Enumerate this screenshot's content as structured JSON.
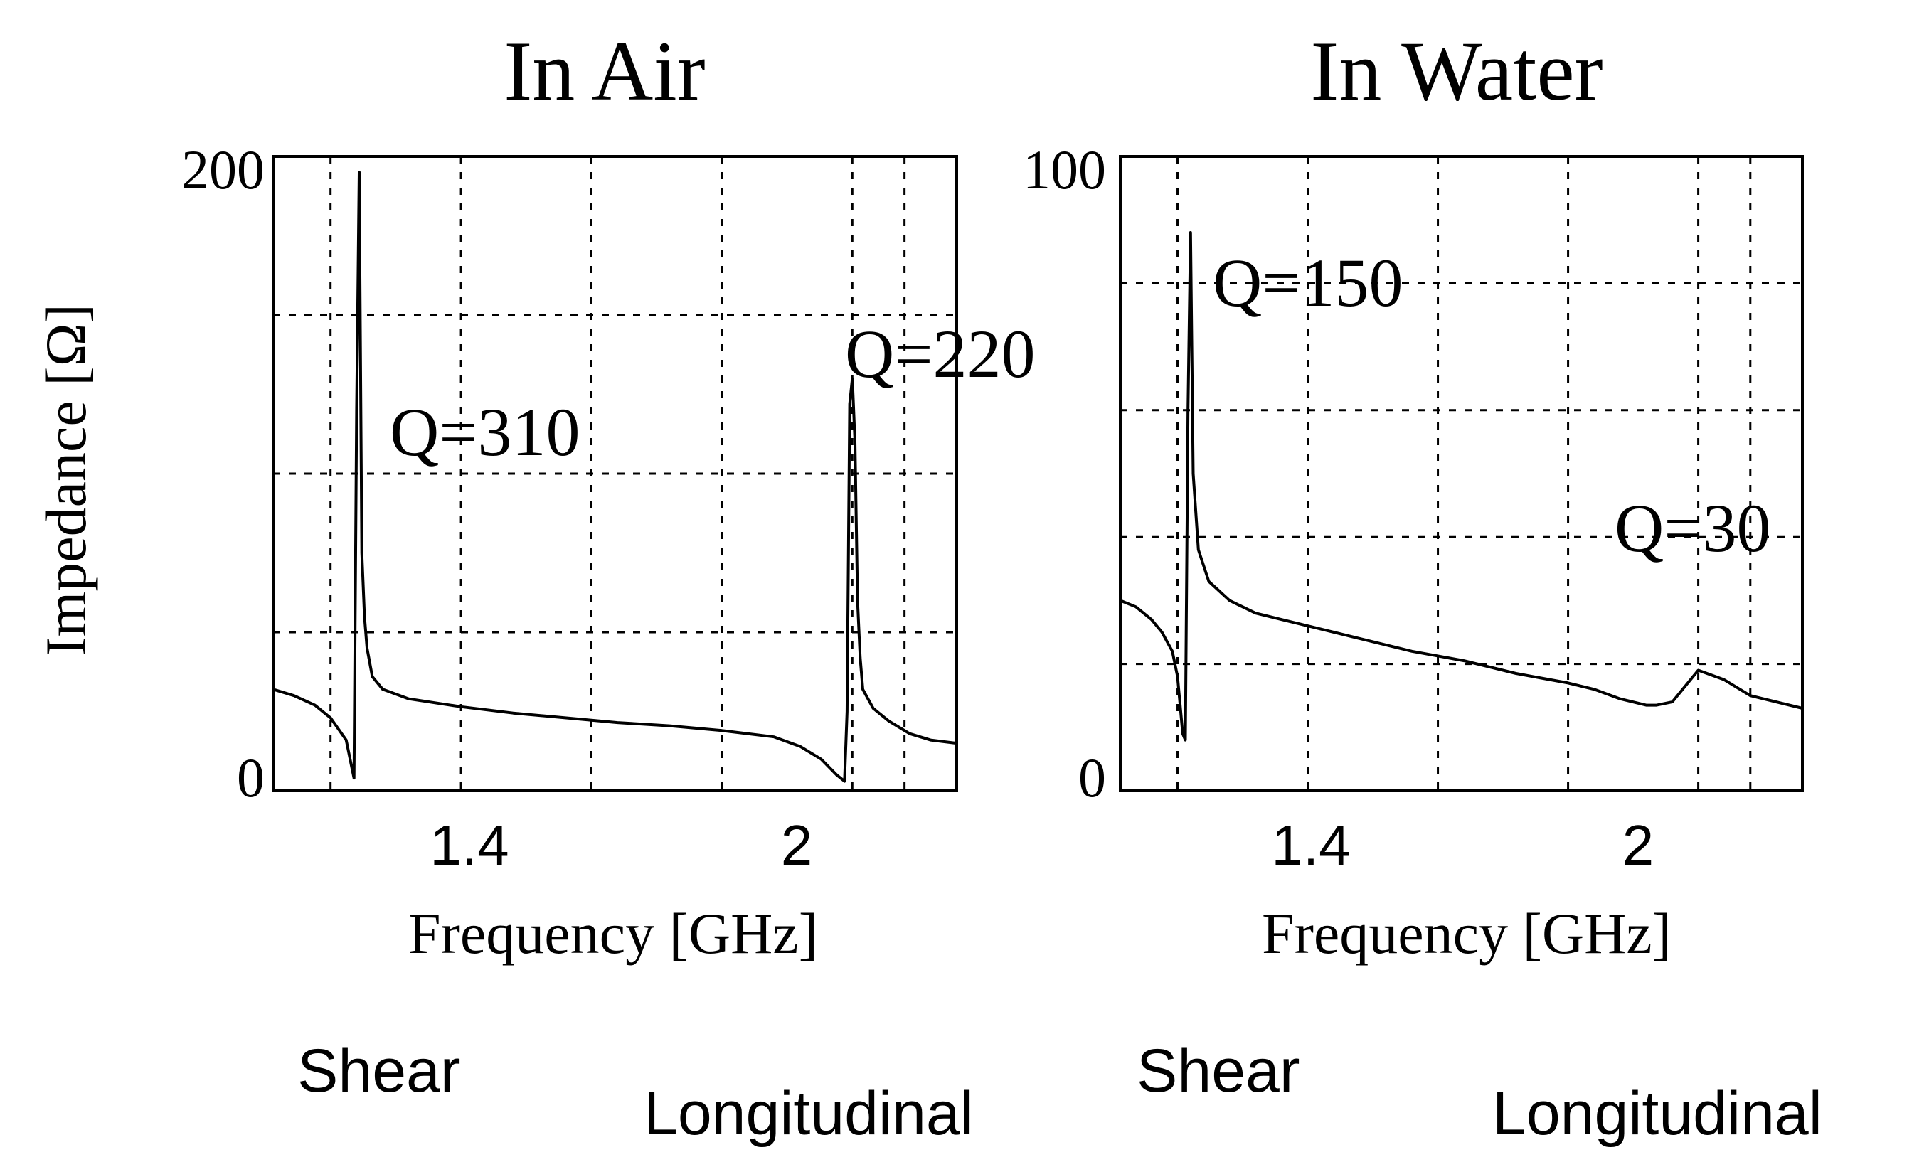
{
  "chart_data": [
    {
      "type": "line",
      "title": "In Air",
      "xlabel": "Frequency [GHz]",
      "ylabel": "Impedance [Ω]",
      "xlim": [
        1.04,
        2.35
      ],
      "ylim": [
        0,
        200
      ],
      "xticks": [
        1.4,
        2
      ],
      "xtick_labels": [
        "1.4",
        "2"
      ],
      "yticks": [
        0,
        200
      ],
      "ytick_labels": [
        "0",
        "200"
      ],
      "grid_x": [
        1.15,
        1.4,
        1.65,
        1.9,
        2.15,
        2.25
      ],
      "grid_y": [
        50,
        100,
        150
      ],
      "grid": true,
      "series": [
        {
          "x": [
            1.04,
            1.08,
            1.12,
            1.15,
            1.18,
            1.19,
            1.195,
            1.2,
            1.205,
            1.21,
            1.215,
            1.22,
            1.23,
            1.25,
            1.3,
            1.4,
            1.5,
            1.6,
            1.7,
            1.8,
            1.9,
            2.0,
            2.05,
            2.09,
            2.12,
            2.135,
            2.14,
            2.145,
            2.15,
            2.155,
            2.16,
            2.165,
            2.17,
            2.19,
            2.22,
            2.26,
            2.3,
            2.35
          ],
          "y": [
            32,
            30,
            27,
            23,
            16,
            8,
            4,
            120,
            195,
            75,
            55,
            45,
            36,
            32,
            29,
            26.5,
            24.5,
            23,
            21.5,
            20.5,
            19,
            17,
            14,
            10,
            5,
            3,
            25,
            122,
            130,
            110,
            60,
            42,
            32,
            26,
            22,
            18,
            16,
            15
          ]
        }
      ],
      "annotations": [
        "Q=310",
        "Q=220"
      ],
      "labels_below": [
        "Shear",
        "Longitudinal"
      ]
    },
    {
      "type": "line",
      "title": "In Water",
      "xlabel": "Frequency [GHz]",
      "ylabel": "",
      "xlim": [
        1.04,
        2.35
      ],
      "ylim": [
        0,
        100
      ],
      "xticks": [
        1.4,
        2
      ],
      "xtick_labels": [
        "1.4",
        "2"
      ],
      "yticks": [
        0,
        100
      ],
      "ytick_labels": [
        "0",
        "100"
      ],
      "grid_x": [
        1.15,
        1.4,
        1.65,
        1.9,
        2.15,
        2.25
      ],
      "grid_y": [
        20,
        40,
        60,
        80
      ],
      "grid": true,
      "series": [
        {
          "x": [
            1.04,
            1.07,
            1.1,
            1.12,
            1.14,
            1.15,
            1.16,
            1.165,
            1.17,
            1.175,
            1.18,
            1.19,
            1.21,
            1.25,
            1.3,
            1.35,
            1.4,
            1.5,
            1.6,
            1.7,
            1.8,
            1.9,
            1.95,
            2.0,
            2.05,
            2.07,
            2.1,
            2.15,
            2.2,
            2.25,
            2.35
          ],
          "y": [
            30,
            29,
            27,
            25,
            22,
            18,
            9,
            8,
            60,
            88,
            50,
            38,
            33,
            30,
            28,
            27,
            26,
            24,
            22,
            20.5,
            18.5,
            17,
            16,
            14.5,
            13.5,
            13.5,
            14,
            19,
            17.5,
            15,
            13
          ]
        }
      ],
      "annotations": [
        "Q=150",
        "Q=30"
      ],
      "labels_below": [
        "Shear",
        "Longitudinal"
      ]
    }
  ]
}
